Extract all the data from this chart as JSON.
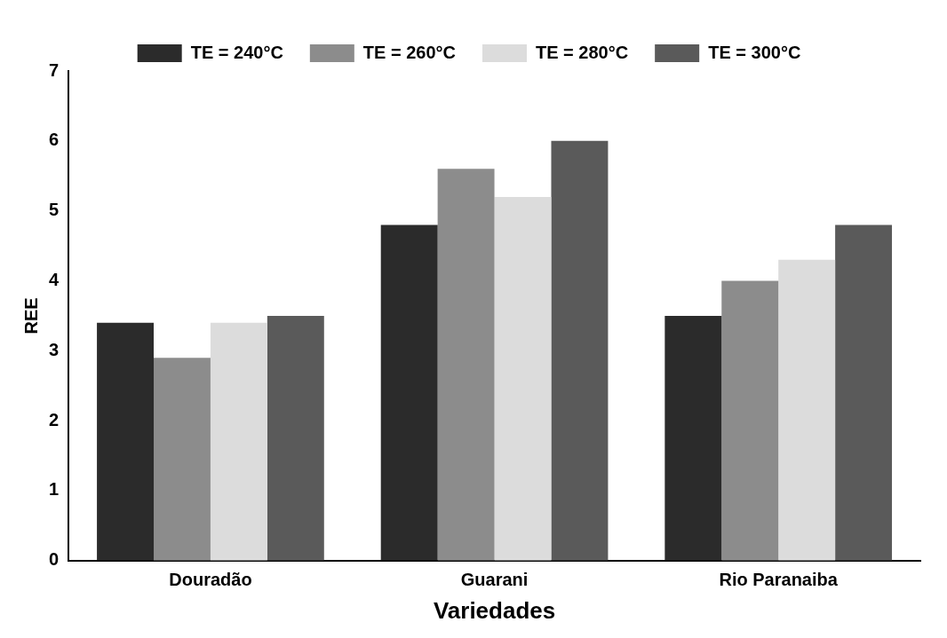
{
  "chart_data": {
    "type": "bar",
    "xlabel": "Variedades",
    "ylabel": "REE",
    "categories": [
      "Douradão",
      "Guarani",
      "Rio Paranaiba"
    ],
    "series": [
      {
        "name": "TE = 240°C",
        "color": "#2b2b2b",
        "values": [
          3.4,
          4.8,
          3.5
        ]
      },
      {
        "name": "TE = 260°C",
        "color": "#8c8c8c",
        "values": [
          2.9,
          5.6,
          4.0
        ]
      },
      {
        "name": "TE = 280°C",
        "color": "#dcdcdc",
        "values": [
          3.4,
          5.2,
          4.3
        ]
      },
      {
        "name": "TE = 300°C",
        "color": "#5a5a5a",
        "values": [
          3.5,
          6.0,
          4.8
        ]
      }
    ],
    "ylim": [
      0,
      7
    ],
    "yticks": [
      0,
      1,
      2,
      3,
      4,
      5,
      6,
      7
    ],
    "legend": "top"
  }
}
